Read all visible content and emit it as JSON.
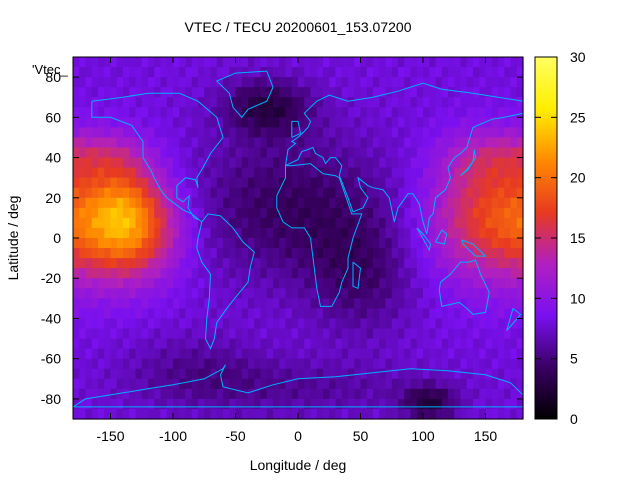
{
  "chart_data": {
    "type": "heatmap",
    "title": "VTEC / TECU 20200601_153.07200",
    "xlabel": "Longitude / deg",
    "ylabel": "Latitude / deg",
    "series_key": "'Vtec_",
    "xlim": [
      -180,
      180
    ],
    "ylim": [
      -90,
      90
    ],
    "x_ticks": [
      {
        "value": -150,
        "label": "-150"
      },
      {
        "value": -100,
        "label": "-100"
      },
      {
        "value": -50,
        "label": "-50"
      },
      {
        "value": 0,
        "label": "0"
      },
      {
        "value": 50,
        "label": "50"
      },
      {
        "value": 100,
        "label": "100"
      },
      {
        "value": 150,
        "label": "150"
      }
    ],
    "y_ticks": [
      {
        "value": 80,
        "label": "80"
      },
      {
        "value": 60,
        "label": "60"
      },
      {
        "value": 40,
        "label": "40"
      },
      {
        "value": 20,
        "label": "20"
      },
      {
        "value": 0,
        "label": "0"
      },
      {
        "value": -20,
        "label": "-20"
      },
      {
        "value": -40,
        "label": "-40"
      },
      {
        "value": -60,
        "label": "-60"
      },
      {
        "value": -80,
        "label": "-80"
      }
    ],
    "colorbar": {
      "range": [
        0,
        30
      ],
      "ticks": [
        {
          "value": 0,
          "label": "0"
        },
        {
          "value": 5,
          "label": "5"
        },
        {
          "value": 10,
          "label": "10"
        },
        {
          "value": 15,
          "label": "15"
        },
        {
          "value": 20,
          "label": "20"
        },
        {
          "value": 25,
          "label": "25"
        },
        {
          "value": 30,
          "label": "30"
        }
      ]
    },
    "grid": false,
    "colors": {
      "palette": [
        "#000000",
        "#3a0064",
        "#7a10f0",
        "#b020c0",
        "#e83a20",
        "#ff8a00",
        "#ffee00",
        "#ffff60"
      ],
      "coastline": "#00b0ff"
    },
    "grid_spec": {
      "lon_step": 5,
      "lat_step": 5,
      "base_value": 8
    },
    "blobs": [
      {
        "lon": -135,
        "lat": 5,
        "sx": 28,
        "sy": 18,
        "amp": 12
      },
      {
        "lon": -140,
        "lat": 25,
        "sx": 20,
        "sy": 16,
        "amp": 3
      },
      {
        "lon": -160,
        "lat": 42,
        "sx": 25,
        "sy": 8,
        "amp": 3
      },
      {
        "lon": 160,
        "lat": 10,
        "sx": 38,
        "sy": 22,
        "amp": 10
      },
      {
        "lon": 150,
        "lat": 40,
        "sx": 25,
        "sy": 10,
        "amp": 3
      },
      {
        "lon": -5,
        "lat": 15,
        "sx": 60,
        "sy": 25,
        "amp": -4
      },
      {
        "lon": -25,
        "lat": 65,
        "sx": 25,
        "sy": 10,
        "amp": -5
      },
      {
        "lon": 50,
        "lat": -20,
        "sx": 30,
        "sy": 20,
        "amp": -3
      },
      {
        "lon": 105,
        "lat": -82,
        "sx": 15,
        "sy": 6,
        "amp": -5
      },
      {
        "lon": -80,
        "lat": -65,
        "sx": 40,
        "sy": 12,
        "amp": -2
      },
      {
        "lon": 0,
        "lat": -75,
        "sx": 80,
        "sy": 10,
        "amp": -2
      }
    ],
    "coastlines": [
      [
        [
          -165,
          68
        ],
        [
          -140,
          70
        ],
        [
          -120,
          72
        ],
        [
          -95,
          72
        ],
        [
          -80,
          68
        ],
        [
          -65,
          60
        ],
        [
          -60,
          50
        ],
        [
          -70,
          42
        ],
        [
          -76,
          35
        ],
        [
          -81,
          30
        ],
        [
          -80,
          25
        ],
        [
          -82,
          29
        ],
        [
          -90,
          30
        ],
        [
          -97,
          26
        ],
        [
          -97,
          20
        ],
        [
          -92,
          18
        ],
        [
          -87,
          21
        ],
        [
          -88,
          15
        ],
        [
          -83,
          10
        ],
        [
          -79,
          9
        ],
        [
          -85,
          12
        ],
        [
          -92,
          14
        ],
        [
          -105,
          20
        ],
        [
          -110,
          24
        ],
        [
          -115,
          30
        ],
        [
          -118,
          34
        ],
        [
          -124,
          40
        ],
        [
          -124,
          48
        ],
        [
          -133,
          56
        ],
        [
          -150,
          60
        ],
        [
          -165,
          60
        ],
        [
          -165,
          68
        ]
      ],
      [
        [
          -79,
          9
        ],
        [
          -77,
          8
        ],
        [
          -72,
          12
        ],
        [
          -62,
          11
        ],
        [
          -52,
          5
        ],
        [
          -44,
          -2
        ],
        [
          -35,
          -7
        ],
        [
          -38,
          -14
        ],
        [
          -40,
          -22
        ],
        [
          -48,
          -28
        ],
        [
          -57,
          -35
        ],
        [
          -65,
          -42
        ],
        [
          -67,
          -50
        ],
        [
          -70,
          -55
        ],
        [
          -74,
          -50
        ],
        [
          -73,
          -40
        ],
        [
          -71,
          -30
        ],
        [
          -70,
          -18
        ],
        [
          -77,
          -12
        ],
        [
          -81,
          -5
        ],
        [
          -80,
          0
        ],
        [
          -78,
          5
        ],
        [
          -77,
          8
        ]
      ],
      [
        [
          -50,
          82
        ],
        [
          -25,
          83
        ],
        [
          -20,
          75
        ],
        [
          -25,
          68
        ],
        [
          -40,
          64
        ],
        [
          -45,
          60
        ],
        [
          -52,
          65
        ],
        [
          -55,
          72
        ],
        [
          -65,
          78
        ],
        [
          -50,
          82
        ]
      ],
      [
        [
          -10,
          36
        ],
        [
          -5,
          36
        ],
        [
          10,
          37
        ],
        [
          20,
          32
        ],
        [
          30,
          31
        ],
        [
          33,
          30
        ],
        [
          43,
          12
        ],
        [
          51,
          12
        ],
        [
          44,
          0
        ],
        [
          40,
          -10
        ],
        [
          40,
          -15
        ],
        [
          35,
          -22
        ],
        [
          33,
          -27
        ],
        [
          27,
          -34
        ],
        [
          18,
          -34
        ],
        [
          15,
          -25
        ],
        [
          12,
          -10
        ],
        [
          10,
          0
        ],
        [
          5,
          5
        ],
        [
          -5,
          5
        ],
        [
          -12,
          8
        ],
        [
          -17,
          15
        ],
        [
          -17,
          21
        ],
        [
          -10,
          30
        ],
        [
          -10,
          36
        ]
      ],
      [
        [
          -10,
          36
        ],
        [
          -8,
          44
        ],
        [
          -2,
          47
        ],
        [
          -5,
          48
        ],
        [
          0,
          50
        ],
        [
          5,
          53
        ],
        [
          8,
          55
        ],
        [
          10,
          58
        ],
        [
          5,
          62
        ],
        [
          15,
          68
        ],
        [
          25,
          71
        ],
        [
          40,
          68
        ],
        [
          60,
          70
        ],
        [
          80,
          73
        ],
        [
          100,
          77
        ],
        [
          115,
          74
        ],
        [
          140,
          72
        ],
        [
          160,
          70
        ],
        [
          180,
          68
        ],
        [
          180,
          62
        ],
        [
          165,
          60
        ],
        [
          155,
          59
        ],
        [
          140,
          55
        ],
        [
          135,
          45
        ],
        [
          130,
          42
        ],
        [
          125,
          40
        ],
        [
          120,
          35
        ],
        [
          122,
          30
        ],
        [
          118,
          24
        ],
        [
          110,
          20
        ],
        [
          108,
          12
        ],
        [
          105,
          10
        ],
        [
          103,
          2
        ],
        [
          100,
          8
        ],
        [
          97,
          17
        ],
        [
          92,
          22
        ],
        [
          88,
          22
        ],
        [
          80,
          15
        ],
        [
          77,
          8
        ],
        [
          73,
          20
        ],
        [
          68,
          24
        ],
        [
          60,
          25
        ],
        [
          56,
          26
        ],
        [
          52,
          28
        ],
        [
          48,
          30
        ],
        [
          50,
          25
        ],
        [
          56,
          20
        ],
        [
          52,
          15
        ],
        [
          44,
          13
        ],
        [
          40,
          20
        ],
        [
          35,
          28
        ],
        [
          33,
          31
        ],
        [
          35,
          36
        ],
        [
          30,
          40
        ],
        [
          26,
          40
        ],
        [
          22,
          37
        ],
        [
          20,
          40
        ],
        [
          14,
          42
        ],
        [
          12,
          45
        ],
        [
          8,
          44
        ],
        [
          3,
          43
        ],
        [
          0,
          39
        ],
        [
          -10,
          36
        ]
      ],
      [
        [
          114,
          -22
        ],
        [
          122,
          -18
        ],
        [
          130,
          -12
        ],
        [
          137,
          -12
        ],
        [
          142,
          -11
        ],
        [
          146,
          -18
        ],
        [
          153,
          -27
        ],
        [
          150,
          -37
        ],
        [
          140,
          -38
        ],
        [
          135,
          -35
        ],
        [
          129,
          -32
        ],
        [
          115,
          -34
        ],
        [
          113,
          -26
        ],
        [
          114,
          -22
        ]
      ],
      [
        [
          95,
          5
        ],
        [
          100,
          2
        ],
        [
          106,
          -3
        ],
        [
          105,
          -6
        ],
        [
          98,
          2
        ],
        [
          95,
          5
        ]
      ],
      [
        [
          110,
          -2
        ],
        [
          115,
          4
        ],
        [
          119,
          2
        ],
        [
          117,
          -3
        ],
        [
          110,
          -2
        ]
      ],
      [
        [
          131,
          -1
        ],
        [
          140,
          -3
        ],
        [
          150,
          -9
        ],
        [
          142,
          -9
        ],
        [
          132,
          -3
        ],
        [
          131,
          -1
        ]
      ],
      [
        [
          -180,
          -84
        ],
        [
          -170,
          -80
        ],
        [
          -150,
          -78
        ],
        [
          -120,
          -75
        ],
        [
          -100,
          -73
        ],
        [
          -75,
          -70
        ],
        [
          -60,
          -65
        ],
        [
          -58,
          -63
        ],
        [
          -62,
          -68
        ],
        [
          -60,
          -74
        ],
        [
          -40,
          -77
        ],
        [
          -20,
          -73
        ],
        [
          0,
          -70
        ],
        [
          30,
          -69
        ],
        [
          60,
          -67
        ],
        [
          90,
          -65
        ],
        [
          120,
          -66
        ],
        [
          150,
          -68
        ],
        [
          170,
          -72
        ],
        [
          180,
          -78
        ],
        [
          180,
          -84
        ],
        [
          -180,
          -84
        ]
      ],
      [
        [
          44,
          -12
        ],
        [
          50,
          -15
        ],
        [
          48,
          -25
        ],
        [
          44,
          -24
        ],
        [
          44,
          -12
        ]
      ],
      [
        [
          -5,
          50
        ],
        [
          -5,
          58
        ],
        [
          0,
          58
        ],
        [
          2,
          52
        ],
        [
          -5,
          50
        ]
      ],
      [
        [
          130,
          31
        ],
        [
          136,
          34
        ],
        [
          142,
          40
        ],
        [
          141,
          44
        ],
        [
          140,
          38
        ],
        [
          135,
          34
        ],
        [
          130,
          31
        ]
      ],
      [
        [
          172,
          -35
        ],
        [
          178,
          -38
        ],
        [
          174,
          -41
        ],
        [
          167,
          -46
        ],
        [
          172,
          -35
        ]
      ]
    ]
  }
}
